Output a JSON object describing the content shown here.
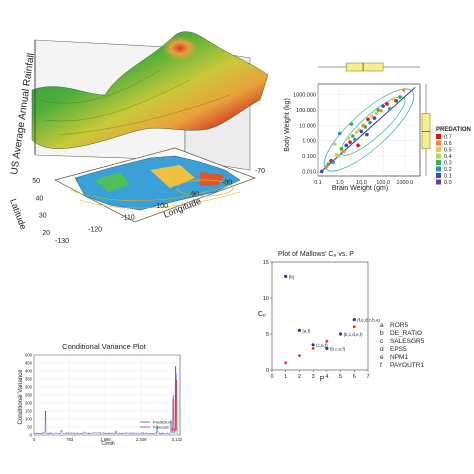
{
  "chart_data": [
    {
      "type": "surface",
      "zlabel": "US Average Annual Rainfall",
      "ylabel": "Latitude",
      "xlabel": "Longitude",
      "lon_ticks": [
        "-130",
        "-120",
        "-110",
        "-100",
        "-90",
        "-80",
        "-70"
      ],
      "lat_ticks": [
        "20",
        "30",
        "40",
        "50"
      ]
    },
    {
      "type": "scatter",
      "xlabel": "Brain Weight (gm)",
      "ylabel": "Body Weight (kg)",
      "x_ticks": [
        "0.1",
        "1.0",
        "10.0",
        "100.0",
        "1000.0"
      ],
      "y_ticks": [
        "1000.000",
        "100.000",
        "10.000",
        "1.000",
        "0.100",
        "0.010"
      ],
      "xlim": [
        0.1,
        5000
      ],
      "ylim": [
        0.005,
        5000
      ],
      "legend_title": "PREDATION",
      "legend": [
        {
          "label": "0.7",
          "color": "#d7191c"
        },
        {
          "label": "0.6",
          "color": "#f08a2c"
        },
        {
          "label": "0.5",
          "color": "#f5c542"
        },
        {
          "label": "0.4",
          "color": "#a6d96a"
        },
        {
          "label": "0.3",
          "color": "#3fae49"
        },
        {
          "label": "0.2",
          "color": "#2c8fc9"
        },
        {
          "label": "0.1",
          "color": "#3b4cc0"
        },
        {
          "label": "0.0",
          "color": "#6a3d9a"
        }
      ],
      "points": [
        {
          "x": 0.15,
          "y": 0.01,
          "p": 0.1
        },
        {
          "x": 0.25,
          "y": 0.02,
          "p": 0.6
        },
        {
          "x": 0.3,
          "y": 0.03,
          "p": 0.3
        },
        {
          "x": 0.4,
          "y": 0.05,
          "p": 0.7
        },
        {
          "x": 0.5,
          "y": 0.04,
          "p": 0.2
        },
        {
          "x": 0.7,
          "y": 0.12,
          "p": 0.5
        },
        {
          "x": 0.9,
          "y": 0.1,
          "p": 0.4
        },
        {
          "x": 1.2,
          "y": 0.3,
          "p": 0.3
        },
        {
          "x": 1.5,
          "y": 0.2,
          "p": 0.6
        },
        {
          "x": 2,
          "y": 0.5,
          "p": 0.1
        },
        {
          "x": 2.5,
          "y": 1.5,
          "p": 0.4
        },
        {
          "x": 3,
          "y": 0.8,
          "p": 0.7
        },
        {
          "x": 4,
          "y": 2,
          "p": 0.3
        },
        {
          "x": 5,
          "y": 1.2,
          "p": 0.2
        },
        {
          "x": 6,
          "y": 3.5,
          "p": 0.5
        },
        {
          "x": 8,
          "y": 5,
          "p": 0.4
        },
        {
          "x": 10,
          "y": 4,
          "p": 0.1
        },
        {
          "x": 12,
          "y": 10,
          "p": 0.6
        },
        {
          "x": 15,
          "y": 8,
          "p": 0.3
        },
        {
          "x": 20,
          "y": 25,
          "p": 0.7
        },
        {
          "x": 25,
          "y": 15,
          "p": 0.2
        },
        {
          "x": 30,
          "y": 40,
          "p": 0.5
        },
        {
          "x": 40,
          "y": 30,
          "p": 0.0
        },
        {
          "x": 50,
          "y": 60,
          "p": 0.4
        },
        {
          "x": 60,
          "y": 100,
          "p": 0.3
        },
        {
          "x": 80,
          "y": 90,
          "p": 0.6
        },
        {
          "x": 100,
          "y": 180,
          "p": 0.1
        },
        {
          "x": 150,
          "y": 250,
          "p": 0.7
        },
        {
          "x": 200,
          "y": 120,
          "p": 0.2
        },
        {
          "x": 300,
          "y": 500,
          "p": 0.5
        },
        {
          "x": 400,
          "y": 400,
          "p": 0.0
        },
        {
          "x": 600,
          "y": 700,
          "p": 0.3
        },
        {
          "x": 900,
          "y": 2000,
          "p": 0.6
        },
        {
          "x": 1.0,
          "y": 3,
          "p": 0.2
        },
        {
          "x": 0.6,
          "y": 0.6,
          "p": 0.4
        },
        {
          "x": 7,
          "y": 0.5,
          "p": 0.7
        },
        {
          "x": 18,
          "y": 2.5,
          "p": 0.1
        },
        {
          "x": 3.5,
          "y": 12,
          "p": 0.3
        }
      ]
    },
    {
      "type": "scatter",
      "title": "Plot of Mallows' Cₚ vs. P",
      "xlabel": "P",
      "ylabel": "Cₚ",
      "xlim": [
        0,
        7
      ],
      "ylim": [
        0,
        15
      ],
      "x_ticks": [
        "0",
        "1",
        "2",
        "3",
        "4",
        "5",
        "6",
        "7"
      ],
      "y_ticks": [
        "0",
        "5",
        "10",
        "15"
      ],
      "points": [
        {
          "x": 1,
          "y": 13,
          "label": "(b)"
        },
        {
          "x": 2,
          "y": 5.5,
          "label": "(a,f)"
        },
        {
          "x": 3,
          "y": 3.5,
          "label": "(c,e,f)"
        },
        {
          "x": 4,
          "y": 3,
          "label": "(b,c,e,f)"
        },
        {
          "x": 5,
          "y": 5,
          "label": "(b,c,d,e,f)"
        },
        {
          "x": 6,
          "y": 7,
          "label": "(f,e,d,c,b,a)"
        }
      ],
      "line": [
        [
          1,
          1
        ],
        [
          6,
          6
        ]
      ],
      "key": [
        {
          "letter": "a",
          "name": "ROR5"
        },
        {
          "letter": "b",
          "name": "DE_RATIO"
        },
        {
          "letter": "c",
          "name": "SALESGR5"
        },
        {
          "letter": "d",
          "name": "EPS5"
        },
        {
          "letter": "e",
          "name": "NPM1"
        },
        {
          "letter": "f",
          "name": "PAYOUTR1"
        }
      ]
    },
    {
      "type": "line",
      "title": "Conditional Variance Plot",
      "xlabel": "C/mth",
      "ylabel": "Conditional Variance",
      "x_ticks": [
        "0",
        "783",
        "1,566",
        "2,349",
        "3,132"
      ],
      "y_ticks": [
        "0",
        "50",
        "100",
        "150",
        "200",
        "250",
        "300",
        "350",
        "400",
        "450",
        "500"
      ],
      "xlim": [
        0,
        3200
      ],
      "ylim": [
        0,
        500
      ],
      "series": [
        {
          "name": "Prediction",
          "color": "#3a5fcd"
        },
        {
          "name": "Forecast",
          "color": "#e03030"
        }
      ],
      "spikes": [
        {
          "x": 250,
          "y": 150
        },
        {
          "x": 600,
          "y": 30
        },
        {
          "x": 1100,
          "y": 20
        },
        {
          "x": 1800,
          "y": 25
        },
        {
          "x": 2700,
          "y": 60
        },
        {
          "x": 3000,
          "y": 90
        },
        {
          "x": 3050,
          "y": 250
        },
        {
          "x": 3100,
          "y": 430
        },
        {
          "x": 3120,
          "y": 380
        }
      ]
    }
  ]
}
